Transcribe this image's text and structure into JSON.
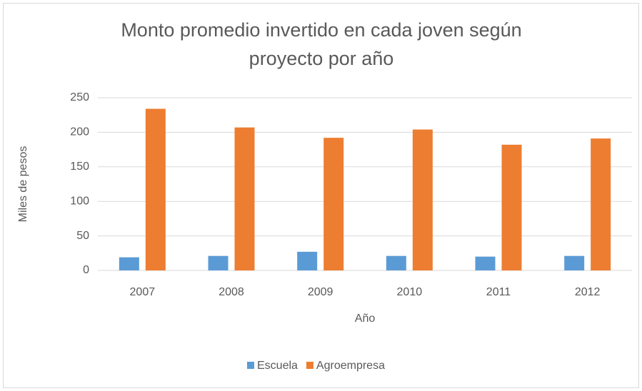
{
  "chart_data": {
    "type": "bar",
    "title": "Monto promedio invertido en cada joven según proyecto por año",
    "x_label": "Año",
    "y_label": "Miles de pesos",
    "categories": [
      "2007",
      "2008",
      "2009",
      "2010",
      "2011",
      "2012"
    ],
    "series": [
      {
        "name": "Escuela",
        "color": "#5b9bd5",
        "values": [
          19,
          21,
          27,
          21,
          20,
          21
        ]
      },
      {
        "name": "Agroempresa",
        "color": "#ed7d31",
        "values": [
          234,
          207,
          192,
          204,
          182,
          191
        ]
      }
    ],
    "ylim": [
      0,
      250
    ],
    "yticks": [
      0,
      50,
      100,
      150,
      200,
      250
    ],
    "grid": true,
    "legend": "bottom"
  }
}
